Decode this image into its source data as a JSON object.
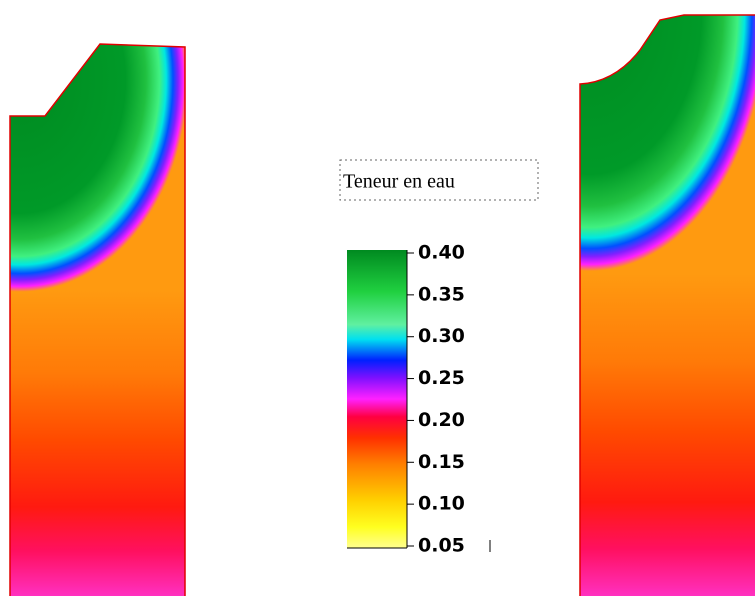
{
  "legend": {
    "title": "Teneur en eau",
    "ticks": [
      "0.40",
      "0.35",
      "0.30",
      "0.25",
      "0.20",
      "0.15",
      "0.10",
      "0.05"
    ]
  }
}
